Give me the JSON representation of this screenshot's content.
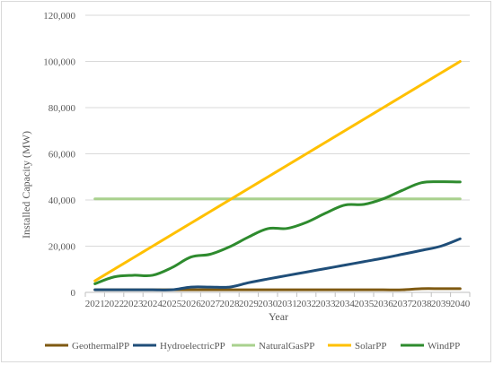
{
  "chart_data": {
    "type": "line",
    "title": "",
    "xlabel": "Year",
    "ylabel": "Installed Capacity (MW)",
    "ylim": [
      0,
      120000
    ],
    "yticks": [
      0,
      20000,
      40000,
      60000,
      80000,
      100000,
      120000
    ],
    "ytick_labels": [
      "0",
      "20,000",
      "40,000",
      "60,000",
      "80,000",
      "100,000",
      "120,000"
    ],
    "grid": true,
    "legend": "bottom",
    "x": [
      "2021",
      "2022",
      "2023",
      "2024",
      "2025",
      "2026",
      "2027",
      "2028",
      "2029",
      "2030",
      "2031",
      "2032",
      "2033",
      "2034",
      "2035",
      "2036",
      "2037",
      "2038",
      "2039",
      "2040"
    ],
    "series": [
      {
        "name": "GeothermalPP",
        "color": "#7f5a12",
        "values": [
          1100,
          1100,
          1100,
          1100,
          1100,
          1100,
          1100,
          1100,
          1100,
          1100,
          1100,
          1100,
          1100,
          1100,
          1100,
          1100,
          1100,
          1600,
          1600,
          1600
        ]
      },
      {
        "name": "HydroelectricPP",
        "color": "#1f4e79",
        "values": [
          1100,
          1100,
          1100,
          1100,
          1100,
          2300,
          2300,
          2300,
          4200,
          5800,
          7300,
          8800,
          10300,
          11800,
          13300,
          14800,
          16500,
          18200,
          20000,
          23200
        ]
      },
      {
        "name": "NaturalGasPP",
        "color": "#a9d18e",
        "values": [
          40500,
          40500,
          40500,
          40500,
          40500,
          40500,
          40500,
          40500,
          40500,
          40500,
          40500,
          40500,
          40500,
          40500,
          40500,
          40500,
          40500,
          40500,
          40500,
          40500
        ]
      },
      {
        "name": "SolarPP",
        "color": "#ffc000",
        "values": [
          5000,
          10000,
          15000,
          20000,
          25000,
          30000,
          35000,
          40000,
          45000,
          50000,
          55000,
          60000,
          65000,
          70000,
          75000,
          80000,
          85000,
          90000,
          95000,
          100000
        ]
      },
      {
        "name": "WindPP",
        "color": "#2e8b2e",
        "values": [
          3700,
          6700,
          7400,
          7400,
          10700,
          15300,
          16500,
          19700,
          24000,
          27600,
          27700,
          30300,
          34300,
          37800,
          38100,
          40500,
          44200,
          47500,
          47900,
          47800
        ]
      }
    ]
  }
}
